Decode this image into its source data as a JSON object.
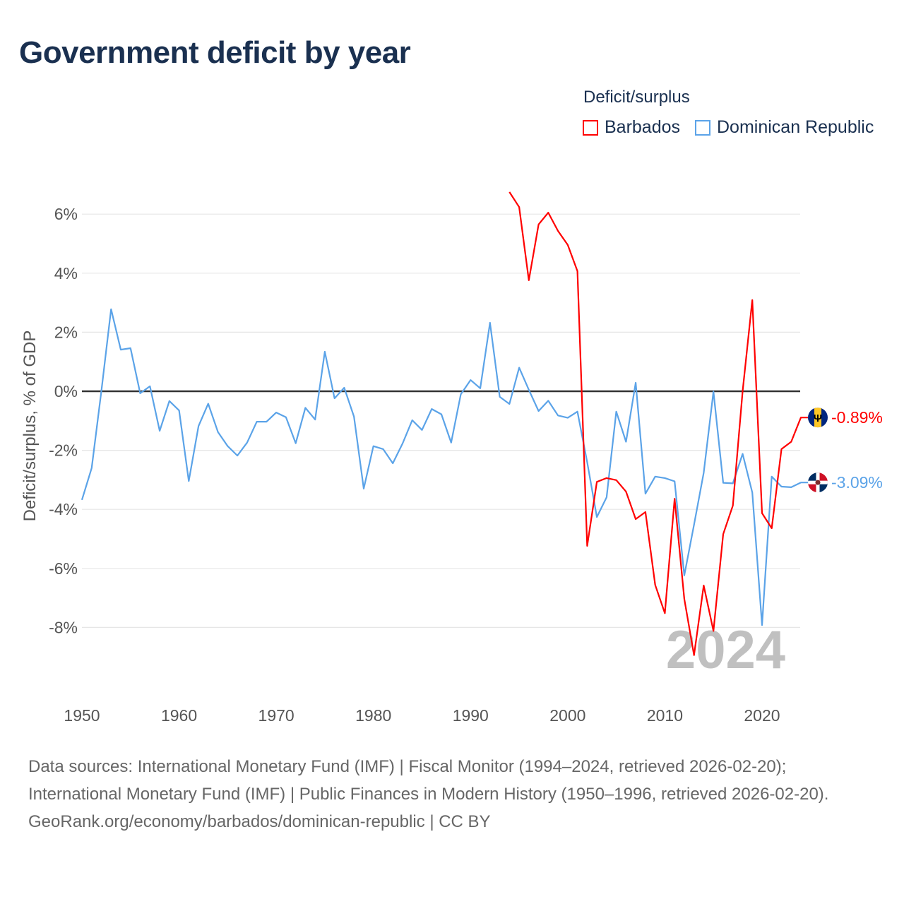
{
  "title": "Government deficit by year",
  "legend": {
    "title": "Deficit/surplus",
    "items": [
      {
        "name": "Barbados",
        "color": "#ff0000"
      },
      {
        "name": "Dominican Republic",
        "color": "#5ba3e8"
      }
    ]
  },
  "chart_data": {
    "type": "line",
    "title": "Government deficit by year",
    "xlabel": "",
    "ylabel": "Deficit/surplus, % of GDP",
    "xlim": [
      1950,
      2024
    ],
    "ylim": [
      -10,
      7
    ],
    "grid": true,
    "legend_position": "top-right",
    "x_ticks": [
      "1950",
      "1960",
      "1970",
      "1980",
      "1990",
      "2000",
      "2010",
      "2020"
    ],
    "y_ticks": [
      {
        "v": 6,
        "label": "6%"
      },
      {
        "v": 4,
        "label": "4%"
      },
      {
        "v": 2,
        "label": "2%"
      },
      {
        "v": 0,
        "label": "0%"
      },
      {
        "v": -2,
        "label": "-2%"
      },
      {
        "v": -4,
        "label": "-4%"
      },
      {
        "v": -6,
        "label": "-6%"
      },
      {
        "v": -8,
        "label": "-8%"
      }
    ],
    "year_watermark": "2024",
    "series": [
      {
        "name": "Barbados",
        "color": "#ff0000",
        "end_label": "-0.89%",
        "flag": "barbados-flag",
        "x_start": 1994,
        "values": [
          6.75,
          6.24,
          3.76,
          5.65,
          6.05,
          5.43,
          4.96,
          4.07,
          -5.24,
          -3.07,
          -2.94,
          -3.01,
          -3.4,
          -4.33,
          -4.09,
          -6.56,
          -7.52,
          -3.64,
          -7.03,
          -8.94,
          -6.58,
          -8.12,
          -4.84,
          -3.87,
          0.0,
          3.09,
          -4.13,
          -4.64,
          -1.96,
          -1.71,
          -0.89
        ]
      },
      {
        "name": "Dominican Republic",
        "color": "#5ba3e8",
        "end_label": "-3.09%",
        "flag": "dominican-republic-flag",
        "x_start": 1950,
        "values": [
          -3.68,
          -2.6,
          0.0,
          2.78,
          1.41,
          1.46,
          -0.07,
          0.17,
          -1.34,
          -0.33,
          -0.65,
          -3.04,
          -1.18,
          -0.42,
          -1.38,
          -1.86,
          -2.18,
          -1.74,
          -1.03,
          -1.03,
          -0.72,
          -0.88,
          -1.76,
          -0.56,
          -0.96,
          1.34,
          -0.24,
          0.12,
          -0.86,
          -3.3,
          -1.86,
          -1.96,
          -2.44,
          -1.77,
          -0.98,
          -1.31,
          -0.6,
          -0.78,
          -1.74,
          -0.1,
          0.38,
          0.1,
          2.32,
          -0.19,
          -0.43,
          0.8,
          0.05,
          -0.67,
          -0.32,
          -0.82,
          -0.9,
          -0.69,
          -2.4,
          -4.26,
          -3.59,
          -0.69,
          -1.71,
          0.29,
          -3.47,
          -2.89,
          -2.94,
          -3.05,
          -6.24,
          -4.52,
          -2.76,
          -0.01,
          -3.1,
          -3.12,
          -2.12,
          -3.43,
          -7.92,
          -2.89,
          -3.23,
          -3.25,
          -3.09
        ]
      }
    ]
  },
  "footer": {
    "sources": "Data sources: International Monetary Fund (IMF) | Fiscal Monitor (1994–2024, retrieved 2026-02-20); International Monetary Fund (IMF) | Public Finances in Modern History (1950–1996, retrieved 2026-02-20).",
    "link": "GeoRank.org/economy/barbados/dominican-republic | CC BY"
  }
}
